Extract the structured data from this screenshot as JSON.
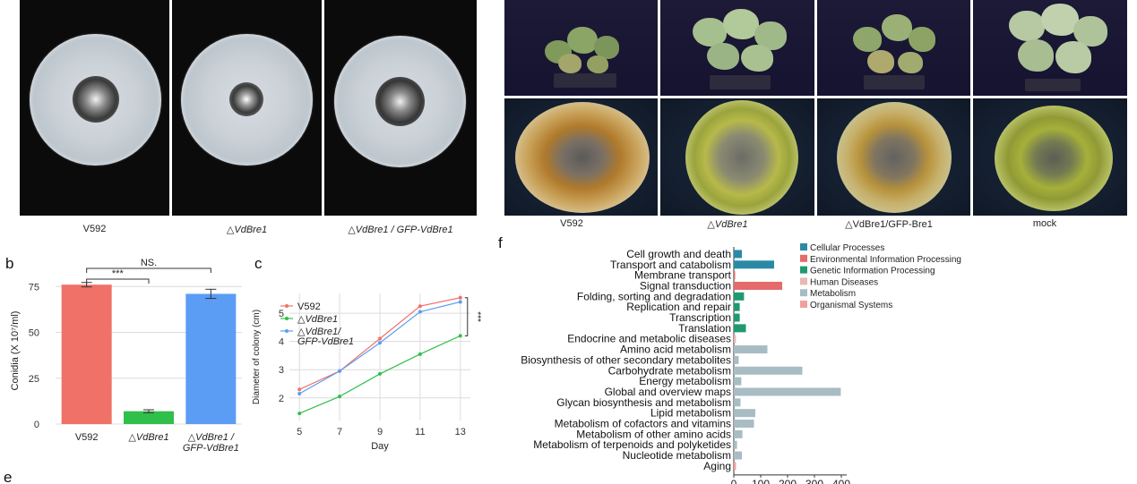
{
  "panel_a": {
    "labels": [
      "V592",
      "△VdBre1",
      "△VdBre1 / GFP-VdBre1"
    ]
  },
  "panel_top_right": {
    "labels": [
      "V592",
      "△VdBre1",
      "△VdBre1/GFP-Bre1",
      "mock"
    ]
  },
  "panel_letters": {
    "b": "b",
    "c": "c",
    "e": "e",
    "f": "f"
  },
  "chart_data": [
    {
      "id": "b",
      "type": "bar",
      "categories": [
        "V592",
        "△VdBre1",
        "△VdBre1 / GFP-VdBre1"
      ],
      "category_lines": [
        [
          "V592"
        ],
        [
          "△VdBre1"
        ],
        [
          "△VdBre1 /",
          "GFP-VdBre1"
        ]
      ],
      "values": [
        76,
        7,
        71
      ],
      "errors": [
        1.2,
        0.8,
        2.5
      ],
      "colors": [
        "#f07167",
        "#2fbf4a",
        "#5b9cf5"
      ],
      "ylabel": "Conidia (X 10⁷/ml)",
      "ylim": [
        0,
        80
      ],
      "yticks": [
        0,
        25,
        50,
        75
      ],
      "grid": true,
      "significance": [
        {
          "pair": [
            0,
            1
          ],
          "label": "***"
        },
        {
          "pair": [
            0,
            2
          ],
          "label": "NS."
        }
      ]
    },
    {
      "id": "c",
      "type": "line",
      "x": [
        5,
        7,
        9,
        11,
        13
      ],
      "xlabel": "Day",
      "ylabel": "Diameter of colony (cm)",
      "xlim": [
        4.5,
        13.5
      ],
      "ylim": [
        1.2,
        5.7
      ],
      "yticks": [
        2,
        3,
        4,
        5
      ],
      "series": [
        {
          "name": "V592",
          "color": "#f07167",
          "values": [
            2.3,
            2.95,
            4.1,
            5.25,
            5.55
          ]
        },
        {
          "name": "△VdBre1",
          "color": "#2fbf4a",
          "values": [
            1.45,
            2.05,
            2.85,
            3.55,
            4.2
          ]
        },
        {
          "name": "△VdBre1/ GFP-VdBre1",
          "color": "#5b9cf5",
          "values": [
            2.15,
            2.95,
            3.95,
            5.05,
            5.4
          ]
        }
      ],
      "legend_lines": [
        [
          "V592"
        ],
        [
          "△VdBre1"
        ],
        [
          "△VdBre1/",
          "GFP-VdBre1"
        ]
      ],
      "significance": "***",
      "legend": "top-left"
    },
    {
      "id": "f",
      "type": "bar",
      "orientation": "horizontal",
      "categories": [
        "Cell growth and death",
        "Transport and catabolism",
        "Membrane transport",
        "Signal transduction",
        "Folding, sorting and degradation",
        "Replication and repair",
        "Transcription",
        "Translation",
        "Endocrine and metabolic diseases",
        "Amino acid metabolism",
        "Biosynthesis of other secondary metabolites",
        "Carbohydrate metabolism",
        "Energy metabolism",
        "Global and overview maps",
        "Glycan biosynthesis and metabolism",
        "Lipid metabolism",
        "Metabolism of cofactors and vitamins",
        "Metabolism of other amino acids",
        "Metabolism of terpenoids and polyketides",
        "Nucleotide metabolism",
        "Aging"
      ],
      "values": [
        30,
        150,
        5,
        180,
        38,
        22,
        22,
        45,
        8,
        125,
        18,
        255,
        28,
        398,
        25,
        80,
        75,
        32,
        12,
        30,
        8
      ],
      "groups": [
        "Cellular Processes",
        "Cellular Processes",
        "Environmental Information Processing",
        "Environmental Information Processing",
        "Genetic Information Processing",
        "Genetic Information Processing",
        "Genetic Information Processing",
        "Genetic Information Processing",
        "Human Diseases",
        "Metabolism",
        "Metabolism",
        "Metabolism",
        "Metabolism",
        "Metabolism",
        "Metabolism",
        "Metabolism",
        "Metabolism",
        "Metabolism",
        "Metabolism",
        "Metabolism",
        "Organismal Systems"
      ],
      "legend": [
        {
          "name": "Cellular Processes",
          "color": "#2a8aa6"
        },
        {
          "name": "Environmental Information Processing",
          "color": "#e56a6a"
        },
        {
          "name": "Genetic Information Processing",
          "color": "#1f9a6e"
        },
        {
          "name": "Human Diseases",
          "color": "#e8b9b3"
        },
        {
          "name": "Metabolism",
          "color": "#a8bcc4"
        },
        {
          "name": "Organismal Systems",
          "color": "#f0a09a"
        }
      ],
      "xlim": [
        0,
        420
      ],
      "xticks": [
        0,
        100,
        200,
        300,
        400
      ],
      "legend_position": "top-right"
    }
  ]
}
